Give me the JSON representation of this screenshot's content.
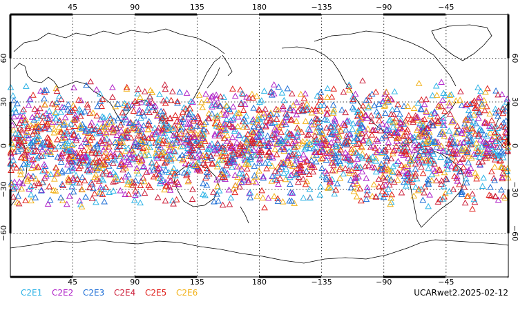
{
  "map": {
    "projection": "cylindrical equidistant, centered on dateline",
    "lon_range": [
      0,
      360
    ],
    "lat_range": [
      -90,
      90
    ],
    "top_lon_labels": [
      {
        "lon": 45,
        "label": "45"
      },
      {
        "lon": 90,
        "label": "90"
      },
      {
        "lon": 135,
        "label": "135"
      },
      {
        "lon": 180,
        "label": "180"
      },
      {
        "lon": 225,
        "label": "−135"
      },
      {
        "lon": 270,
        "label": "−90"
      },
      {
        "lon": 315,
        "label": "−45"
      }
    ],
    "bottom_lon_labels": [
      {
        "lon": 45,
        "label": "45"
      },
      {
        "lon": 90,
        "label": "90"
      },
      {
        "lon": 135,
        "label": "135"
      },
      {
        "lon": 180,
        "label": "180"
      },
      {
        "lon": 225,
        "label": "−135"
      },
      {
        "lon": 270,
        "label": "−90"
      },
      {
        "lon": 315,
        "label": "−45"
      }
    ],
    "lat_labels": [
      {
        "lat": 60,
        "label": "60"
      },
      {
        "lat": 30,
        "label": "30"
      },
      {
        "lat": 0,
        "label": "0"
      },
      {
        "lat": -30,
        "label": "−30"
      },
      {
        "lat": -60,
        "label": "−60"
      }
    ],
    "grid": true,
    "grid_style": "dotted",
    "frame_color": "#000000"
  },
  "observations": {
    "marker": "open-triangle",
    "lat_band": [
      -45,
      45
    ],
    "note_density": "dense global coverage within band"
  },
  "legend": [
    {
      "name": "C2E1",
      "color": "#2bb2e6"
    },
    {
      "name": "C2E2",
      "color": "#b021c8"
    },
    {
      "name": "C2E3",
      "color": "#1f6fd6"
    },
    {
      "name": "C2E4",
      "color": "#cc1f3a"
    },
    {
      "name": "C2E5",
      "color": "#e0201c"
    },
    {
      "name": "C2E6",
      "color": "#f2b21a"
    }
  ],
  "footer": {
    "stamp": "UCARwet2.2025-02-12"
  }
}
